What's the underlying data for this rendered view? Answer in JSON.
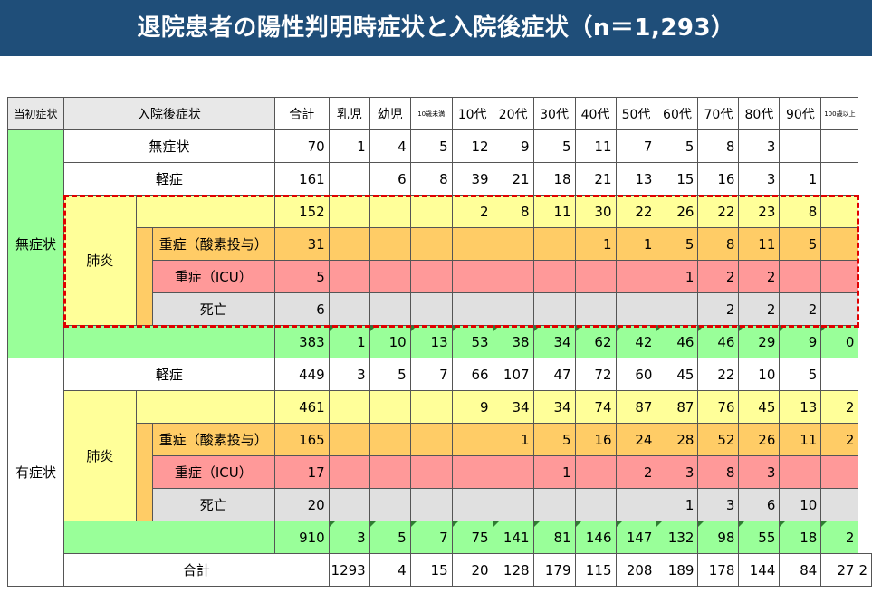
{
  "title": "退院患者の陽性判明時症状と入院後症状（n＝1,293）",
  "headers": {
    "initial": "当初症状",
    "after": "入院後症状",
    "total": "合計",
    "ages": [
      "乳児",
      "幼児",
      "10歳未満",
      "10代",
      "20代",
      "30代",
      "40代",
      "50代",
      "60代",
      "70代",
      "80代",
      "90代",
      "100歳以上"
    ]
  },
  "groups": {
    "asymptomatic": "無症状",
    "symptomatic": "有症状",
    "pneumonia": "肺炎",
    "mild": "軽症",
    "none": "無症状",
    "severe_o2": "重症（酸素投与）",
    "severe_icu": "重症（ICU）",
    "death": "死亡",
    "grand_total": "合計"
  },
  "rows": {
    "a_none": {
      "total": "70",
      "ages": [
        "1",
        "4",
        "5",
        "12",
        "9",
        "5",
        "11",
        "7",
        "5",
        "8",
        "3",
        "",
        ""
      ]
    },
    "a_mild": {
      "total": "161",
      "ages": [
        "",
        "6",
        "8",
        "39",
        "21",
        "18",
        "21",
        "13",
        "15",
        "16",
        "3",
        "1",
        ""
      ]
    },
    "a_pneu": {
      "total": "152",
      "ages": [
        "",
        "",
        "",
        "2",
        "8",
        "11",
        "30",
        "22",
        "26",
        "22",
        "23",
        "8",
        ""
      ]
    },
    "a_o2": {
      "total": "31",
      "ages": [
        "",
        "",
        "",
        "",
        "",
        "",
        "1",
        "1",
        "5",
        "8",
        "11",
        "5",
        ""
      ]
    },
    "a_icu": {
      "total": "5",
      "ages": [
        "",
        "",
        "",
        "",
        "",
        "",
        "",
        "",
        "1",
        "2",
        "2",
        "",
        ""
      ]
    },
    "a_death": {
      "total": "6",
      "ages": [
        "",
        "",
        "",
        "",
        "",
        "",
        "",
        "",
        "",
        "2",
        "2",
        "2",
        ""
      ]
    },
    "a_sub": {
      "total": "383",
      "ages": [
        "1",
        "10",
        "13",
        "53",
        "38",
        "34",
        "62",
        "42",
        "46",
        "46",
        "29",
        "9",
        "0"
      ]
    },
    "s_mild": {
      "total": "449",
      "ages": [
        "3",
        "5",
        "7",
        "66",
        "107",
        "47",
        "72",
        "60",
        "45",
        "22",
        "10",
        "5",
        ""
      ]
    },
    "s_pneu": {
      "total": "461",
      "ages": [
        "",
        "",
        "",
        "9",
        "34",
        "34",
        "74",
        "87",
        "87",
        "76",
        "45",
        "13",
        "2"
      ]
    },
    "s_o2": {
      "total": "165",
      "ages": [
        "",
        "",
        "",
        "",
        "1",
        "5",
        "16",
        "24",
        "28",
        "52",
        "26",
        "11",
        "2"
      ]
    },
    "s_icu": {
      "total": "17",
      "ages": [
        "",
        "",
        "",
        "",
        "",
        "1",
        "",
        "2",
        "3",
        "8",
        "3",
        "",
        ""
      ]
    },
    "s_death": {
      "total": "20",
      "ages": [
        "",
        "",
        "",
        "",
        "",
        "",
        "",
        "",
        "1",
        "3",
        "6",
        "10",
        ""
      ]
    },
    "s_sub": {
      "total": "910",
      "ages": [
        "3",
        "5",
        "7",
        "75",
        "141",
        "81",
        "146",
        "147",
        "132",
        "98",
        "55",
        "18",
        "2"
      ]
    },
    "grand": {
      "total": "1293",
      "ages": [
        "4",
        "15",
        "20",
        "128",
        "179",
        "115",
        "208",
        "189",
        "178",
        "144",
        "84",
        "27",
        "2"
      ]
    }
  }
}
